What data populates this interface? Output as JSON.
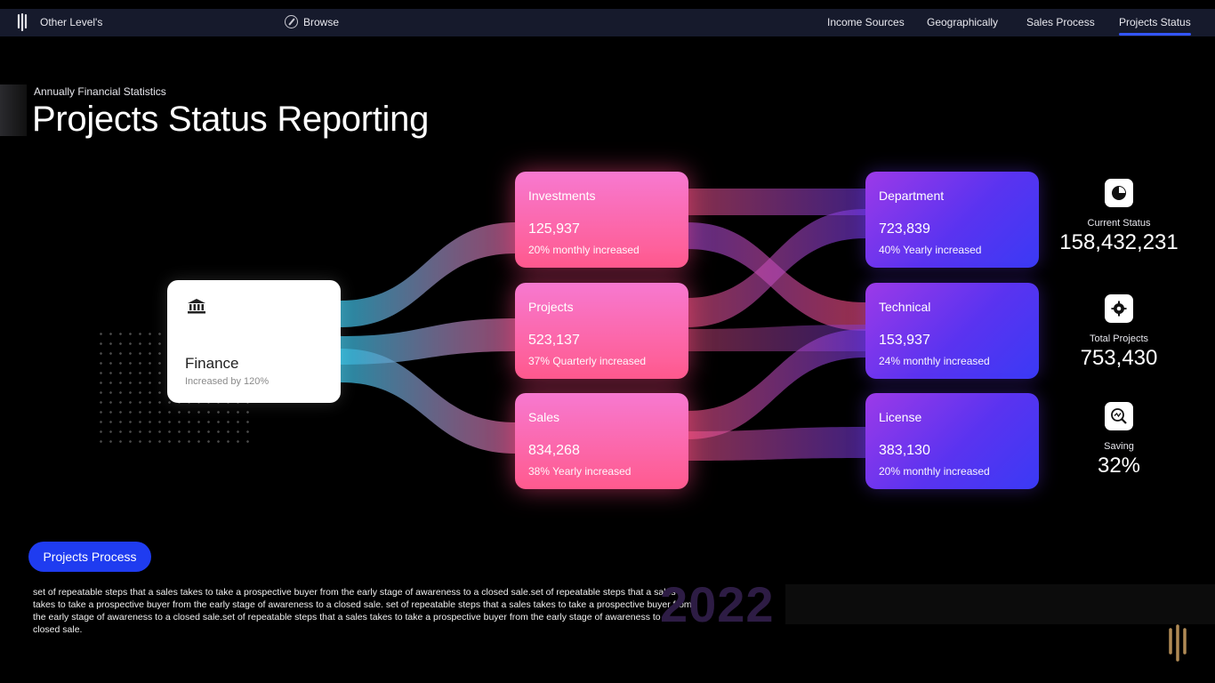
{
  "app": {
    "brand": "Other Level's",
    "browse": "Browse"
  },
  "nav": [
    "Income Sources",
    "Geographically",
    "Sales Process",
    "Projects Status"
  ],
  "nav_active": "Projects Status",
  "header": {
    "subtitle": "Annually Financial Statistics",
    "title": "Projects Status Reporting"
  },
  "finance": {
    "name": "Finance",
    "sub": "Increased by 120%"
  },
  "middle": [
    {
      "label": "Investments",
      "value": "125,937",
      "desc": "20% monthly increased"
    },
    {
      "label": "Projects",
      "value": "523,137",
      "desc": "37% Quarterly increased"
    },
    {
      "label": "Sales",
      "value": "834,268",
      "desc": "38% Yearly increased"
    }
  ],
  "right": [
    {
      "label": "Department",
      "value": "723,839",
      "desc": "40% Yearly increased"
    },
    {
      "label": "Technical",
      "value": "153,937",
      "desc": "24% monthly increased"
    },
    {
      "label": "License",
      "value": "383,130",
      "desc": "20% monthly increased"
    }
  ],
  "stats": [
    {
      "label": "Current Status",
      "value": "158,432,231",
      "icon": "pie-chart-icon"
    },
    {
      "label": "Total Projects",
      "value": "753,430",
      "icon": "gear-icon"
    },
    {
      "label": "Saving",
      "value": "32%",
      "icon": "magnifier-chart-icon"
    }
  ],
  "footer": {
    "button": "Projects Process",
    "text": "set of repeatable steps that a sales takes to take a prospective buyer from the early stage of awareness to a closed sale.set of repeatable steps that a sales takes to take a prospective buyer from the early stage of awareness to a closed sale. set of repeatable steps that a sales takes to take a prospective buyer from the early stage of awareness to a closed sale.set of repeatable steps that a sales takes to take a prospective buyer from the early stage of awareness to a closed sale.",
    "year": "2022"
  },
  "colors": {
    "accent": "#1f3cf0",
    "pink": "#ff5a8e",
    "violet": "#5a33f0",
    "teal": "#2fa8c8"
  }
}
